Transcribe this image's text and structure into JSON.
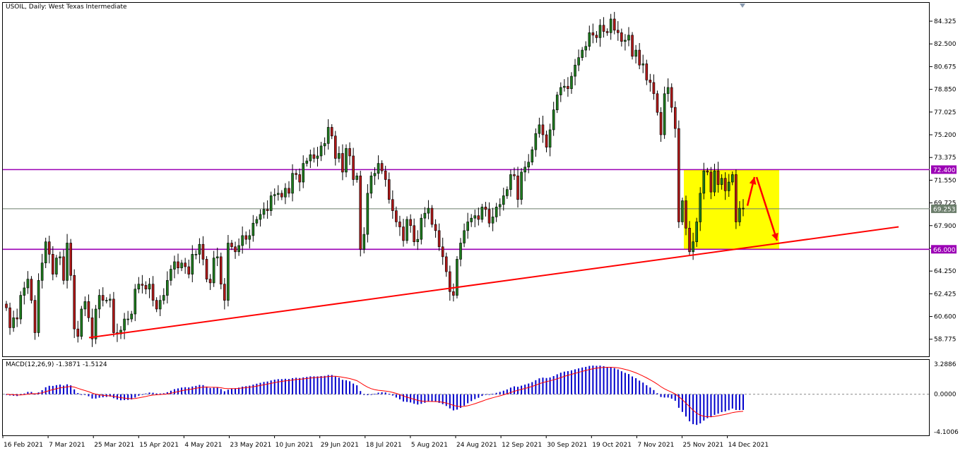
{
  "header": {
    "title": "USOIL, Daily:  West Texas Intermediate"
  },
  "price_scale": [
    "84.325",
    "82.500",
    "80.675",
    "78.850",
    "77.025",
    "75.200",
    "73.375",
    "71.550",
    "69.725",
    "67.900",
    "66.075",
    "64.250",
    "62.425",
    "60.600",
    "58.775"
  ],
  "price_badges": {
    "upper_level": "72.400",
    "current_price": "69.253",
    "lower_level": "66.000"
  },
  "macd": {
    "label": "MACD(12,26,9) -1.3871 -1.5124",
    "scale": [
      "3.2886",
      "0.0000",
      "-4.1006"
    ]
  },
  "date_labels": [
    "16 Feb 2021",
    "7 Mar 2021",
    "25 Mar 2021",
    "15 Apr 2021",
    "4 May 2021",
    "23 May 2021",
    "10 Jun 2021",
    "29 Jun 2021",
    "18 Jul 2021",
    "5 Aug 2021",
    "24 Aug 2021",
    "12 Sep 2021",
    "30 Sep 2021",
    "19 Oct 2021",
    "7 Nov 2021",
    "25 Nov 2021",
    "14 Dec 2021"
  ],
  "colors": {
    "bull": "#1e7b1e",
    "bear": "#b01818",
    "level_line": "#9b00b5",
    "trend_line": "#ff0000",
    "zone": "#ffff00",
    "macd_hist": "#0000cc",
    "macd_signal": "#ff0000"
  },
  "chart_data": {
    "type": "candlestick",
    "symbol": "USOIL",
    "timeframe": "Daily",
    "ylim": [
      57.4,
      85.8
    ],
    "levels": [
      72.4,
      66.0
    ],
    "current_price": 69.253,
    "trendline": [
      {
        "date": "25 Mar 2021",
        "price": 58.9
      },
      {
        "date": "24 Dec 2021",
        "price": 67.8
      }
    ],
    "zone": {
      "from": "25 Nov 2021",
      "to": "24 Dec 2021",
      "high": 72.4,
      "low": 66.0
    },
    "arrows": [
      {
        "from": [
          69.5
        ],
        "to": [
          71.8
        ],
        "direction": "up"
      },
      {
        "from": [
          71.8
        ],
        "to": [
          66.7
        ],
        "direction": "down"
      }
    ],
    "series_close": [
      61.3,
      59.7,
      60.5,
      60.4,
      62.3,
      62.9,
      63.6,
      61.9,
      59.3,
      63.5,
      64.9,
      66.6,
      65.6,
      64.0,
      65.3,
      65.4,
      63.5,
      66.5,
      63.9,
      59.6,
      59.0,
      61.2,
      61.8,
      60.5,
      58.8,
      61.2,
      62.3,
      61.9,
      61.9,
      62.0,
      59.3,
      59.2,
      59.5,
      60.4,
      60.4,
      60.8,
      62.8,
      63.2,
      63.1,
      62.8,
      63.2,
      61.9,
      61.2,
      61.9,
      62.3,
      63.5,
      64.4,
      65.0,
      64.5,
      64.9,
      64.6,
      64.0,
      65.6,
      65.6,
      66.4,
      65.2,
      63.6,
      63.3,
      65.3,
      65.4,
      63.2,
      61.9,
      66.5,
      66.2,
      65.8,
      66.3,
      67.1,
      66.8,
      67.1,
      68.1,
      68.4,
      68.8,
      69.2,
      69.1,
      70.3,
      70.4,
      70.5,
      70.2,
      70.9,
      70.5,
      72.1,
      72.0,
      71.4,
      72.9,
      73.1,
      73.6,
      73.3,
      73.5,
      74.3,
      74.5,
      75.8,
      75.1,
      73.3,
      73.7,
      72.2,
      74.1,
      73.5,
      71.6,
      71.9,
      66.0,
      67.2,
      70.5,
      71.9,
      72.1,
      72.9,
      72.3,
      71.6,
      70.0,
      69.1,
      68.2,
      67.8,
      66.7,
      68.4,
      67.9,
      66.6,
      66.8,
      68.5,
      68.9,
      69.3,
      68.0,
      67.5,
      66.2,
      65.4,
      64.2,
      62.6,
      62.3,
      65.2,
      66.5,
      67.5,
      68.2,
      68.5,
      68.7,
      68.4,
      69.4,
      69.2,
      68.1,
      68.6,
      69.4,
      69.6,
      70.3,
      70.8,
      72.0,
      71.9,
      70.0,
      72.2,
      72.6,
      73.0,
      74.0,
      75.3,
      76.0,
      75.2,
      74.2,
      75.6,
      77.2,
      78.4,
      79.0,
      79.1,
      78.9,
      79.9,
      80.8,
      81.4,
      82.0,
      82.3,
      83.4,
      83.2,
      83.0,
      84.0,
      83.5,
      83.4,
      84.5,
      83.6,
      83.4,
      82.7,
      82.8,
      83.2,
      81.5,
      82.0,
      80.8,
      80.9,
      79.6,
      79.4,
      78.5,
      77.0,
      75.2,
      78.5,
      79.0,
      77.4,
      75.7,
      68.2,
      69.9,
      67.7,
      65.8,
      66.6,
      68.2,
      70.5,
      72.3,
      72.2,
      70.6,
      72.3,
      71.2,
      71.7,
      70.7,
      71.4,
      72.0,
      68.2,
      69.3,
      69.3
    ]
  }
}
